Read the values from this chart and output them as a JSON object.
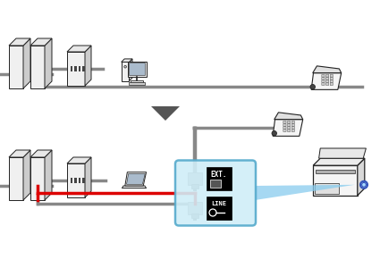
{
  "bg_color": "#ffffff",
  "gray": "#888888",
  "dark_gray": "#444444",
  "light_gray": "#cccccc",
  "red": "#dd0000",
  "light_blue_fill": "#d0eef8",
  "light_blue_edge": "#55aacc",
  "black": "#000000",
  "white": "#ffffff",
  "outline": "#222222",
  "mid_gray": "#999999",
  "device_fill": "#f0f0f0",
  "device_side": "#cccccc",
  "device_top": "#e8e8e8"
}
